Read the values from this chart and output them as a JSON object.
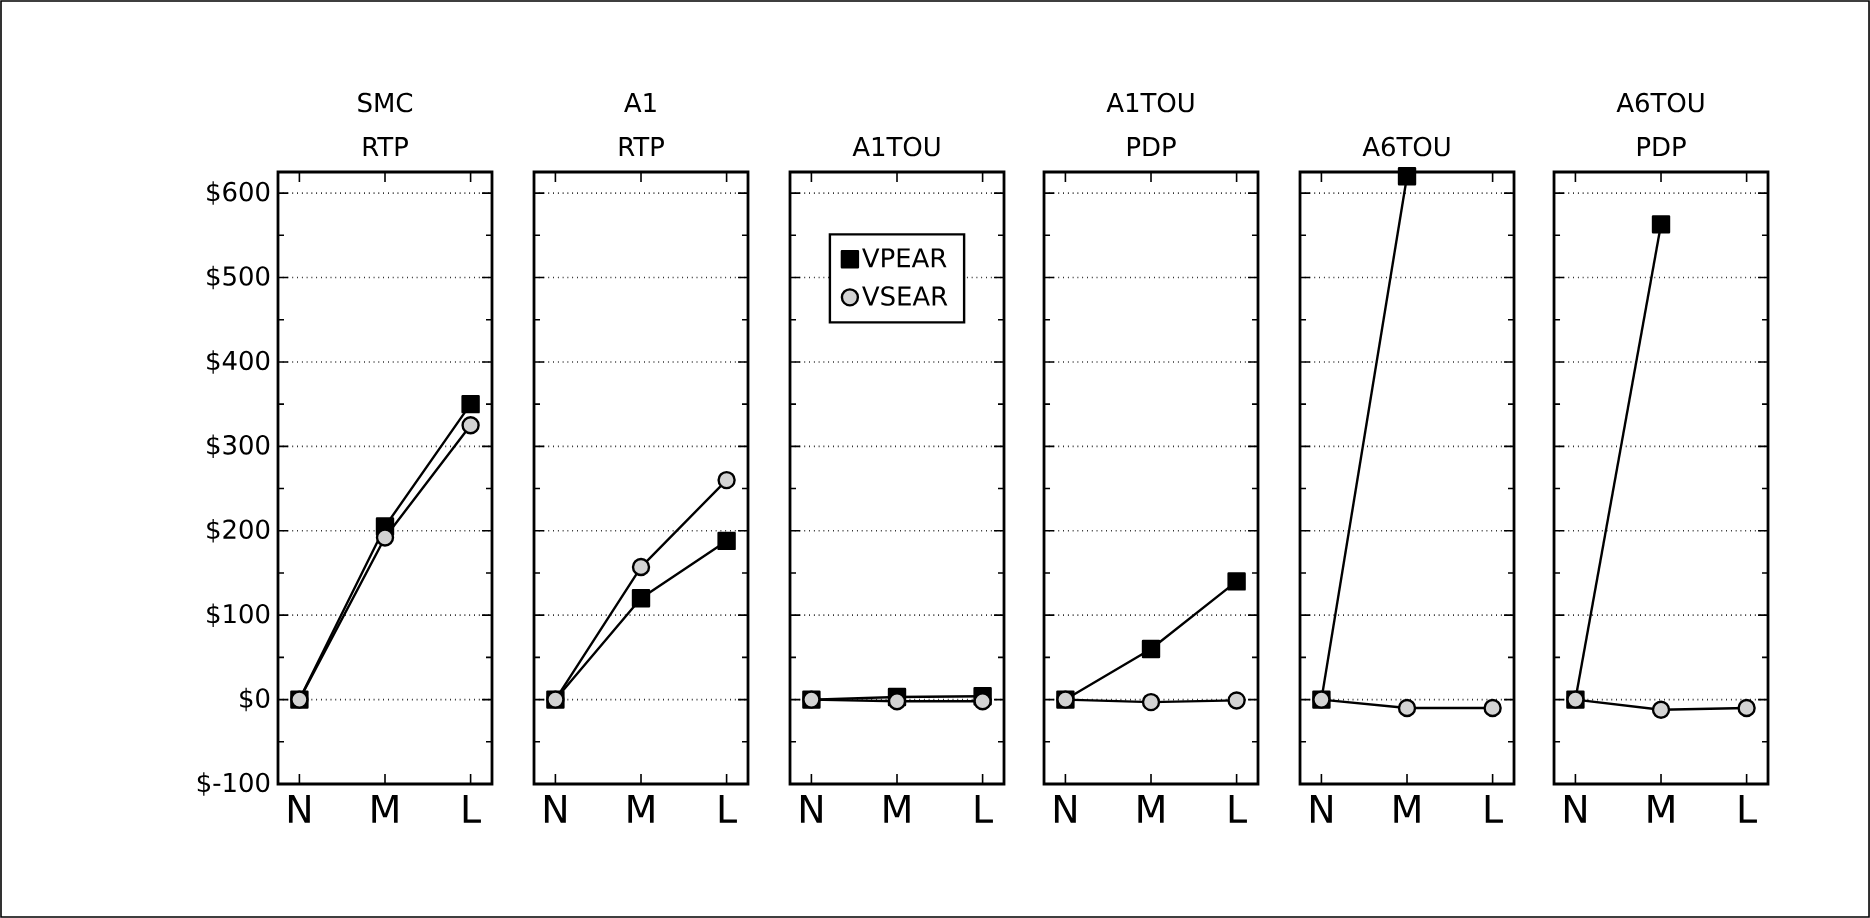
{
  "chart_data": [
    {
      "type": "line",
      "title": "SMC",
      "subtitle": "RTP",
      "categories": [
        "N",
        "M",
        "L"
      ],
      "ylim": [
        -100,
        625
      ],
      "yticks": [
        {
          "value": -100,
          "label": "$-100"
        },
        {
          "value": 0,
          "label": "$0"
        },
        {
          "value": 100,
          "label": "$100"
        },
        {
          "value": 200,
          "label": "$200"
        },
        {
          "value": 300,
          "label": "$300"
        },
        {
          "value": 400,
          "label": "$400"
        },
        {
          "value": 500,
          "label": "$500"
        },
        {
          "value": 600,
          "label": "$600"
        }
      ],
      "grid": "y",
      "series": [
        {
          "color": "#000000",
          "marker": "square",
          "values": [
            0,
            205,
            350
          ]
        },
        {
          "color": "#d3d3d3",
          "marker": "circle",
          "values": [
            0,
            192,
            325
          ]
        }
      ]
    },
    {
      "type": "line",
      "title": "A1",
      "subtitle": "RTP",
      "categories": [
        "N",
        "M",
        "L"
      ],
      "ylim": [
        -100,
        625
      ],
      "tick_labels": "x",
      "yticks": [
        -100,
        0,
        100,
        200,
        300,
        400,
        500,
        600
      ],
      "grid": "y",
      "series": [
        {
          "color": "#000000",
          "marker": "square",
          "values": [
            0,
            120,
            188
          ]
        },
        {
          "color": "#d3d3d3",
          "marker": "circle",
          "values": [
            0,
            157,
            260
          ]
        }
      ]
    },
    {
      "type": "line",
      "title": "A1TOU",
      "categories": [
        "N",
        "M",
        "L"
      ],
      "ylim": [
        -100,
        625
      ],
      "tick_labels": "x",
      "yticks": [
        -100,
        0,
        100,
        200,
        300,
        400,
        500,
        600
      ],
      "grid": "y",
      "legend": "top",
      "series": [
        {
          "name": "VPEAR",
          "color": "#000000",
          "marker": "square",
          "values": [
            0,
            3,
            4
          ]
        },
        {
          "name": "VSEAR",
          "color": "#d3d3d3",
          "marker": "circle",
          "values": [
            0,
            -2,
            -2
          ]
        }
      ]
    },
    {
      "type": "line",
      "title": "A1TOU",
      "subtitle": "PDP",
      "categories": [
        "N",
        "M",
        "L"
      ],
      "ylim": [
        -100,
        625
      ],
      "tick_labels": "x",
      "yticks": [
        -100,
        0,
        100,
        200,
        300,
        400,
        500,
        600
      ],
      "grid": "y",
      "series": [
        {
          "color": "#000000",
          "marker": "square",
          "values": [
            0,
            60,
            140
          ]
        },
        {
          "color": "#d3d3d3",
          "marker": "circle",
          "values": [
            0,
            -3,
            -1
          ]
        }
      ]
    },
    {
      "type": "line",
      "title": "A6TOU",
      "categories": [
        "N",
        "M",
        "L"
      ],
      "ylim": [
        -100,
        625
      ],
      "tick_labels": "x",
      "yticks": [
        -100,
        0,
        100,
        200,
        300,
        400,
        500,
        600
      ],
      "grid": "y",
      "series": [
        {
          "color": "#000000",
          "marker": "square",
          "values": [
            0,
            620,
            null
          ]
        },
        {
          "color": "#d3d3d3",
          "marker": "circle",
          "values": [
            0,
            -10,
            -10
          ]
        }
      ]
    },
    {
      "type": "line",
      "title": "A6TOU",
      "subtitle": "PDP",
      "categories": [
        "N",
        "M",
        "L"
      ],
      "ylim": [
        -100,
        625
      ],
      "tick_labels": "x",
      "yticks": [
        -100,
        0,
        100,
        200,
        300,
        400,
        500,
        600
      ],
      "grid": "y",
      "series": [
        {
          "color": "#000000",
          "marker": "square",
          "values": [
            0,
            563,
            null
          ]
        },
        {
          "color": "#d3d3d3",
          "marker": "circle",
          "values": [
            0,
            -12,
            -10
          ]
        }
      ]
    }
  ]
}
